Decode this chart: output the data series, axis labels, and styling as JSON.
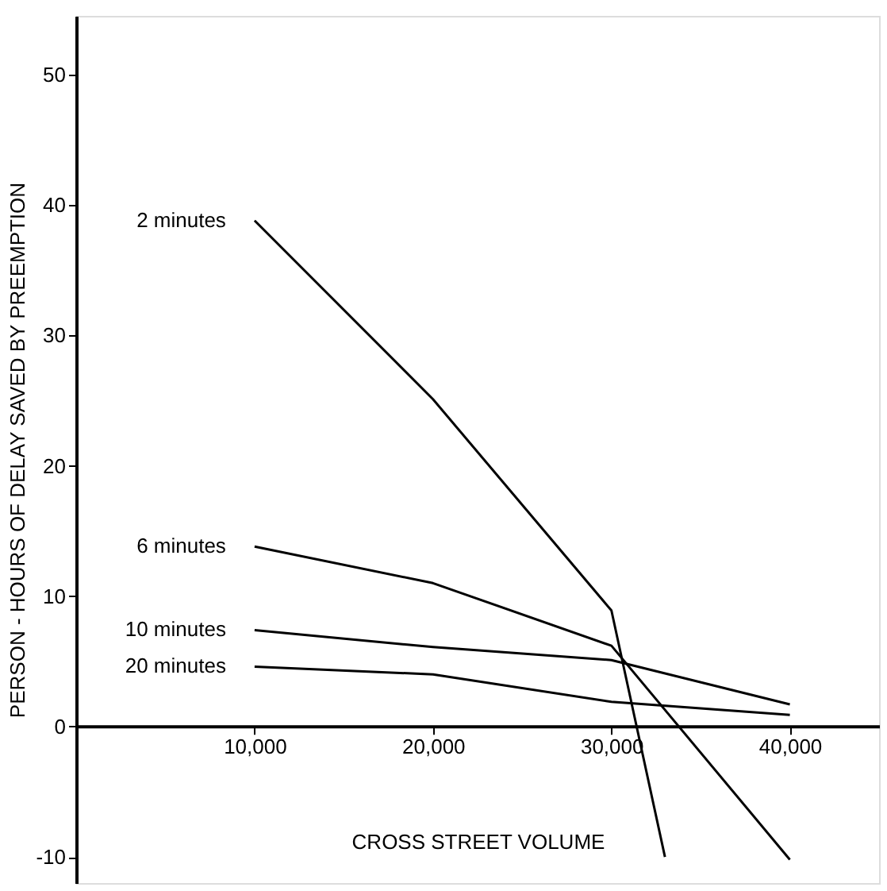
{
  "chart_data": {
    "type": "line",
    "xlabel": "CROSS STREET VOLUME",
    "ylabel": "PERSON - HOURS OF DELAY SAVED BY PREEMPTION",
    "xlim": [
      0,
      45000
    ],
    "ylim": [
      -12,
      54.5
    ],
    "xticks": [
      {
        "value": 10000,
        "label": "10,000"
      },
      {
        "value": 20000,
        "label": "20,000"
      },
      {
        "value": 30000,
        "label": "30,000"
      },
      {
        "value": 40000,
        "label": "40,000"
      }
    ],
    "yticks": [
      -10,
      0,
      10,
      20,
      30,
      40,
      50
    ],
    "grid": false,
    "legend": false,
    "marker": "none",
    "line_style": "solid",
    "series": [
      {
        "name": "2 minutes",
        "color": "#000000",
        "x": [
          10000,
          20000,
          30000,
          33000
        ],
        "values": [
          38.8,
          25.1,
          8.9,
          -10
        ]
      },
      {
        "name": "6 minutes",
        "color": "#000000",
        "x": [
          10000,
          20000,
          30000,
          40000
        ],
        "values": [
          13.8,
          11.0,
          6.2,
          -10.2
        ]
      },
      {
        "name": "10 minutes",
        "color": "#000000",
        "x": [
          10000,
          20000,
          30000,
          40000
        ],
        "values": [
          7.4,
          6.1,
          5.1,
          1.7
        ]
      },
      {
        "name": "20 minutes",
        "color": "#000000",
        "x": [
          10000,
          20000,
          30000,
          40000
        ],
        "values": [
          4.6,
          4.0,
          1.9,
          0.9
        ]
      }
    ]
  }
}
